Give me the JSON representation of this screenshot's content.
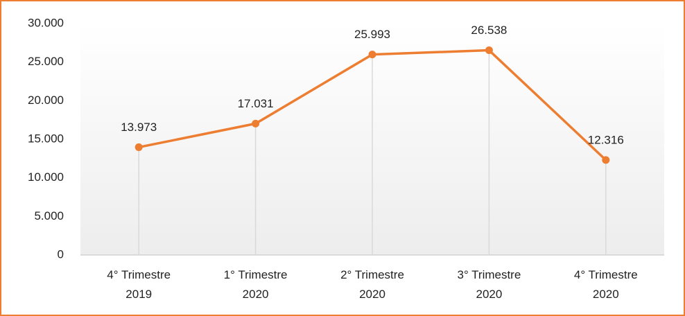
{
  "chart_data": {
    "type": "line",
    "categories": [
      "4° Trimestre 2019",
      "1° Trimestre 2020",
      "2° Trimestre 2020",
      "3° Trimestre 2020",
      "4° Trimestre 2020"
    ],
    "values": [
      13973,
      17031,
      25993,
      26538,
      12316
    ],
    "value_labels": [
      "13.973",
      "17.031",
      "25.993",
      "26.538",
      "12.316"
    ],
    "color": "#ed7d31",
    "ylim": [
      0,
      30000
    ],
    "yticks": [
      0,
      {
        "value": 5000,
        "label": "5.000"
      },
      {
        "value": 10000,
        "label": "10.000"
      },
      {
        "value": 15000,
        "label": "15.000"
      },
      {
        "value": 20000,
        "label": "20.000"
      },
      {
        "value": 25000,
        "label": "25.000"
      },
      {
        "value": 30000,
        "label": "30.000"
      }
    ],
    "grid": false
  }
}
